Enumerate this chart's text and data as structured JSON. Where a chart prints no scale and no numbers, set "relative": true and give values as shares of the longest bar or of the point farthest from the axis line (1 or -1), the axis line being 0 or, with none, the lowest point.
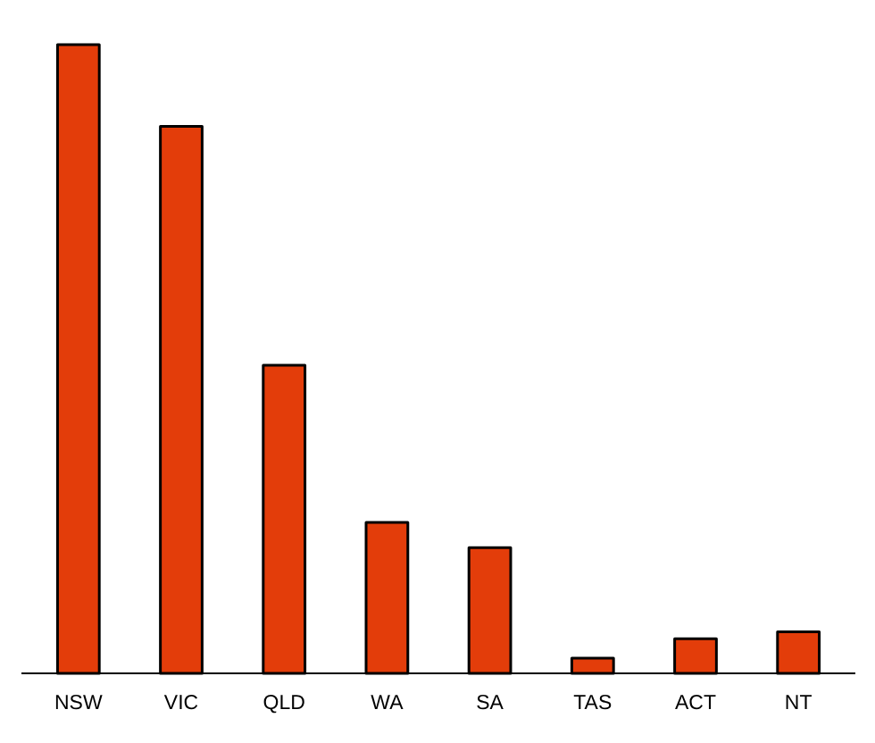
{
  "chart_data": {
    "type": "bar",
    "relative": true,
    "categories": [
      "NSW",
      "VIC",
      "QLD",
      "WA",
      "SA",
      "TAS",
      "ACT",
      "NT"
    ],
    "values": [
      1,
      0.87,
      0.49,
      0.24,
      0.2,
      0.024,
      0.055,
      0.066
    ],
    "color": "#e33d0a"
  }
}
